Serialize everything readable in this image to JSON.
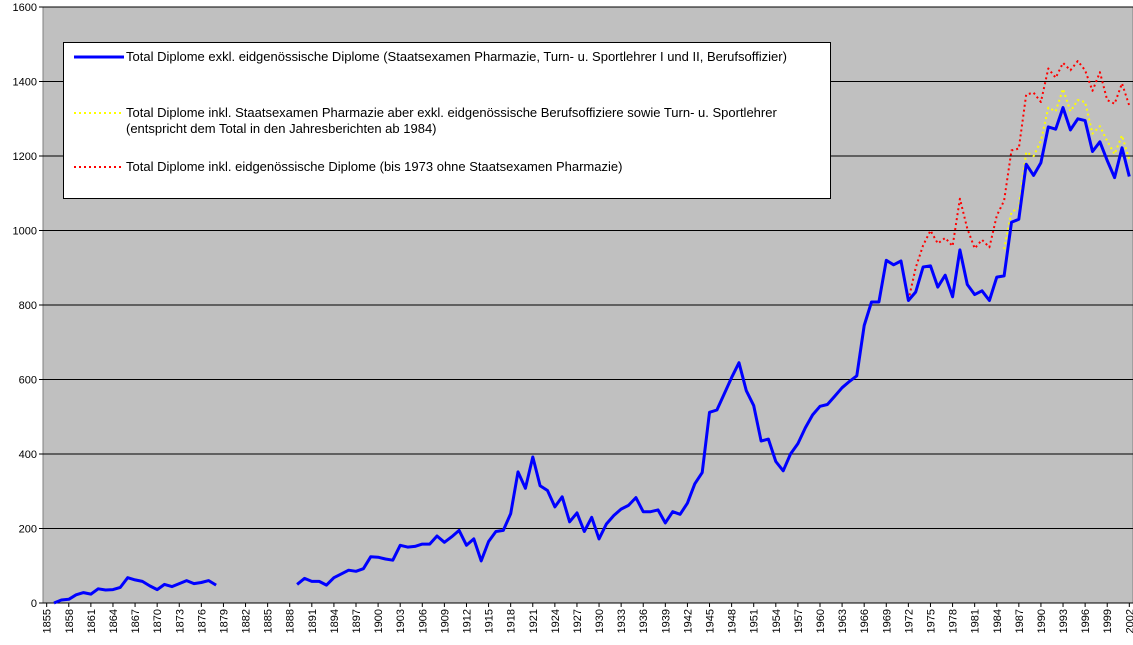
{
  "chart_data": {
    "type": "line",
    "categories": [
      "1855",
      null,
      null,
      "1858",
      null,
      null,
      "1861",
      null,
      null,
      "1864",
      null,
      null,
      "1867",
      null,
      null,
      "1870",
      null,
      null,
      "1873",
      null,
      null,
      "1876",
      null,
      null,
      "1879",
      null,
      null,
      "1882",
      null,
      null,
      "1885",
      null,
      null,
      "1888",
      null,
      null,
      "1891",
      null,
      null,
      "1894",
      null,
      null,
      "1897",
      null,
      null,
      "1900",
      null,
      null,
      "1903",
      null,
      null,
      "1906",
      null,
      null,
      "1909",
      null,
      null,
      "1912",
      null,
      null,
      "1915",
      null,
      null,
      "1918",
      null,
      null,
      "1921",
      null,
      null,
      "1924",
      null,
      null,
      "1927",
      null,
      null,
      "1930",
      null,
      null,
      "1933",
      null,
      null,
      "1936",
      null,
      null,
      "1939",
      null,
      null,
      "1942",
      null,
      null,
      "1945",
      null,
      null,
      "1948",
      null,
      null,
      "1951",
      null,
      null,
      "1954",
      null,
      null,
      "1957",
      null,
      null,
      "1960",
      null,
      null,
      "1963",
      null,
      null,
      "1966",
      null,
      null,
      "1969",
      null,
      null,
      "1972",
      null,
      null,
      "1975",
      null,
      null,
      "1978",
      null,
      null,
      "1981",
      null,
      null,
      "1984",
      null,
      null,
      "1987",
      null,
      null,
      "1990",
      null,
      null,
      "1993",
      null,
      null,
      "1996",
      null,
      null,
      "1999",
      null,
      null,
      "2002"
    ],
    "series": [
      {
        "name": "Total Diplome exkl. eidgenössische Diplome (Staatsexamen Pharmazie, Turn- u. Sportlehrer I und II, Berufsoffizier)",
        "color": "#0000ff",
        "line_style": "solid",
        "values": [
          null,
          0,
          8,
          10,
          22,
          28,
          24,
          38,
          35,
          36,
          42,
          68,
          62,
          58,
          46,
          36,
          50,
          44,
          52,
          60,
          52,
          55,
          60,
          48,
          null,
          null,
          null,
          null,
          null,
          null,
          null,
          null,
          null,
          null,
          50,
          66,
          58,
          58,
          48,
          68,
          78,
          88,
          85,
          92,
          124,
          123,
          118,
          115,
          155,
          150,
          152,
          158,
          158,
          180,
          163,
          178,
          195,
          155,
          172,
          113,
          165,
          192,
          195,
          240,
          352,
          308,
          392,
          315,
          302,
          258,
          285,
          218,
          242,
          192,
          230,
          172,
          212,
          235,
          252,
          262,
          283,
          245,
          245,
          250,
          215,
          245,
          238,
          268,
          320,
          350,
          512,
          518,
          562,
          605,
          645,
          570,
          530,
          435,
          440,
          380,
          355,
          400,
          428,
          470,
          505,
          528,
          533,
          555,
          578,
          595,
          610,
          745,
          808,
          808,
          920,
          908,
          918,
          812,
          835,
          902,
          905,
          848,
          880,
          822,
          948,
          855,
          828,
          838,
          812,
          875,
          878,
          1022,
          1030,
          1178,
          1148,
          1182,
          1278,
          1272,
          1330,
          1270,
          1300,
          1295,
          1212,
          1238,
          1188,
          1142,
          1222,
          1145
        ]
      },
      {
        "name": "Total Diplome inkl. Staatsexamen Pharmazie aber exkl. eidgenössische Berufsoffiziere sowie Turn- u. Sportlehrer (entspricht dem Total in den Jahresberichten ab 1984)",
        "color": "#ffff00",
        "line_style": "dotted",
        "values": [
          null,
          null,
          null,
          null,
          null,
          null,
          null,
          null,
          null,
          null,
          null,
          null,
          null,
          null,
          null,
          null,
          null,
          null,
          null,
          null,
          null,
          null,
          null,
          null,
          null,
          null,
          null,
          null,
          null,
          null,
          null,
          null,
          null,
          null,
          null,
          null,
          null,
          null,
          null,
          null,
          null,
          null,
          null,
          null,
          null,
          null,
          null,
          null,
          null,
          null,
          null,
          null,
          null,
          null,
          null,
          null,
          null,
          null,
          null,
          null,
          null,
          null,
          null,
          null,
          null,
          null,
          null,
          null,
          null,
          null,
          null,
          null,
          null,
          null,
          null,
          null,
          null,
          null,
          null,
          null,
          null,
          null,
          null,
          null,
          null,
          null,
          null,
          null,
          null,
          null,
          null,
          null,
          null,
          null,
          null,
          null,
          null,
          null,
          null,
          null,
          null,
          null,
          null,
          null,
          null,
          null,
          null,
          null,
          null,
          null,
          null,
          null,
          null,
          null,
          null,
          null,
          null,
          null,
          null,
          null,
          null,
          null,
          null,
          null,
          null,
          null,
          null,
          null,
          null,
          null,
          950,
          1050,
          1060,
          1210,
          1200,
          1240,
          1330,
          1320,
          1380,
          1320,
          1350,
          1345,
          1260,
          1280,
          1240,
          1205,
          1255,
          1190
        ]
      },
      {
        "name": "Total Diplome inkl. eidgenössische Diplome (bis 1973 ohne Staatsexamen Pharmazie)",
        "color": "#ff0000",
        "line_style": "dotted",
        "values": [
          null,
          null,
          null,
          null,
          null,
          null,
          null,
          null,
          null,
          null,
          null,
          null,
          null,
          null,
          null,
          null,
          null,
          null,
          null,
          null,
          null,
          null,
          null,
          null,
          null,
          null,
          null,
          null,
          null,
          null,
          null,
          null,
          null,
          null,
          null,
          null,
          null,
          null,
          null,
          null,
          null,
          null,
          null,
          null,
          null,
          null,
          null,
          null,
          null,
          null,
          null,
          null,
          null,
          null,
          null,
          null,
          null,
          null,
          null,
          null,
          null,
          null,
          null,
          null,
          null,
          null,
          null,
          null,
          null,
          null,
          null,
          null,
          null,
          null,
          null,
          null,
          null,
          null,
          null,
          null,
          null,
          null,
          null,
          null,
          null,
          null,
          null,
          null,
          320,
          350,
          512,
          518,
          562,
          605,
          645,
          570,
          530,
          435,
          440,
          380,
          355,
          400,
          428,
          470,
          505,
          528,
          533,
          555,
          578,
          595,
          610,
          745,
          808,
          808,
          920,
          908,
          918,
          812,
          900,
          960,
          1000,
          965,
          980,
          958,
          1085,
          1005,
          952,
          975,
          955,
          1040,
          1080,
          1215,
          1220,
          1365,
          1370,
          1345,
          1435,
          1410,
          1450,
          1430,
          1455,
          1430,
          1375,
          1425,
          1350,
          1340,
          1395,
          1335
        ]
      }
    ],
    "ylim": [
      0,
      1600
    ],
    "yticks": [
      0,
      200,
      400,
      600,
      800,
      1000,
      1200,
      1400,
      1600
    ],
    "grid": true,
    "background": "#c0c0c0"
  }
}
